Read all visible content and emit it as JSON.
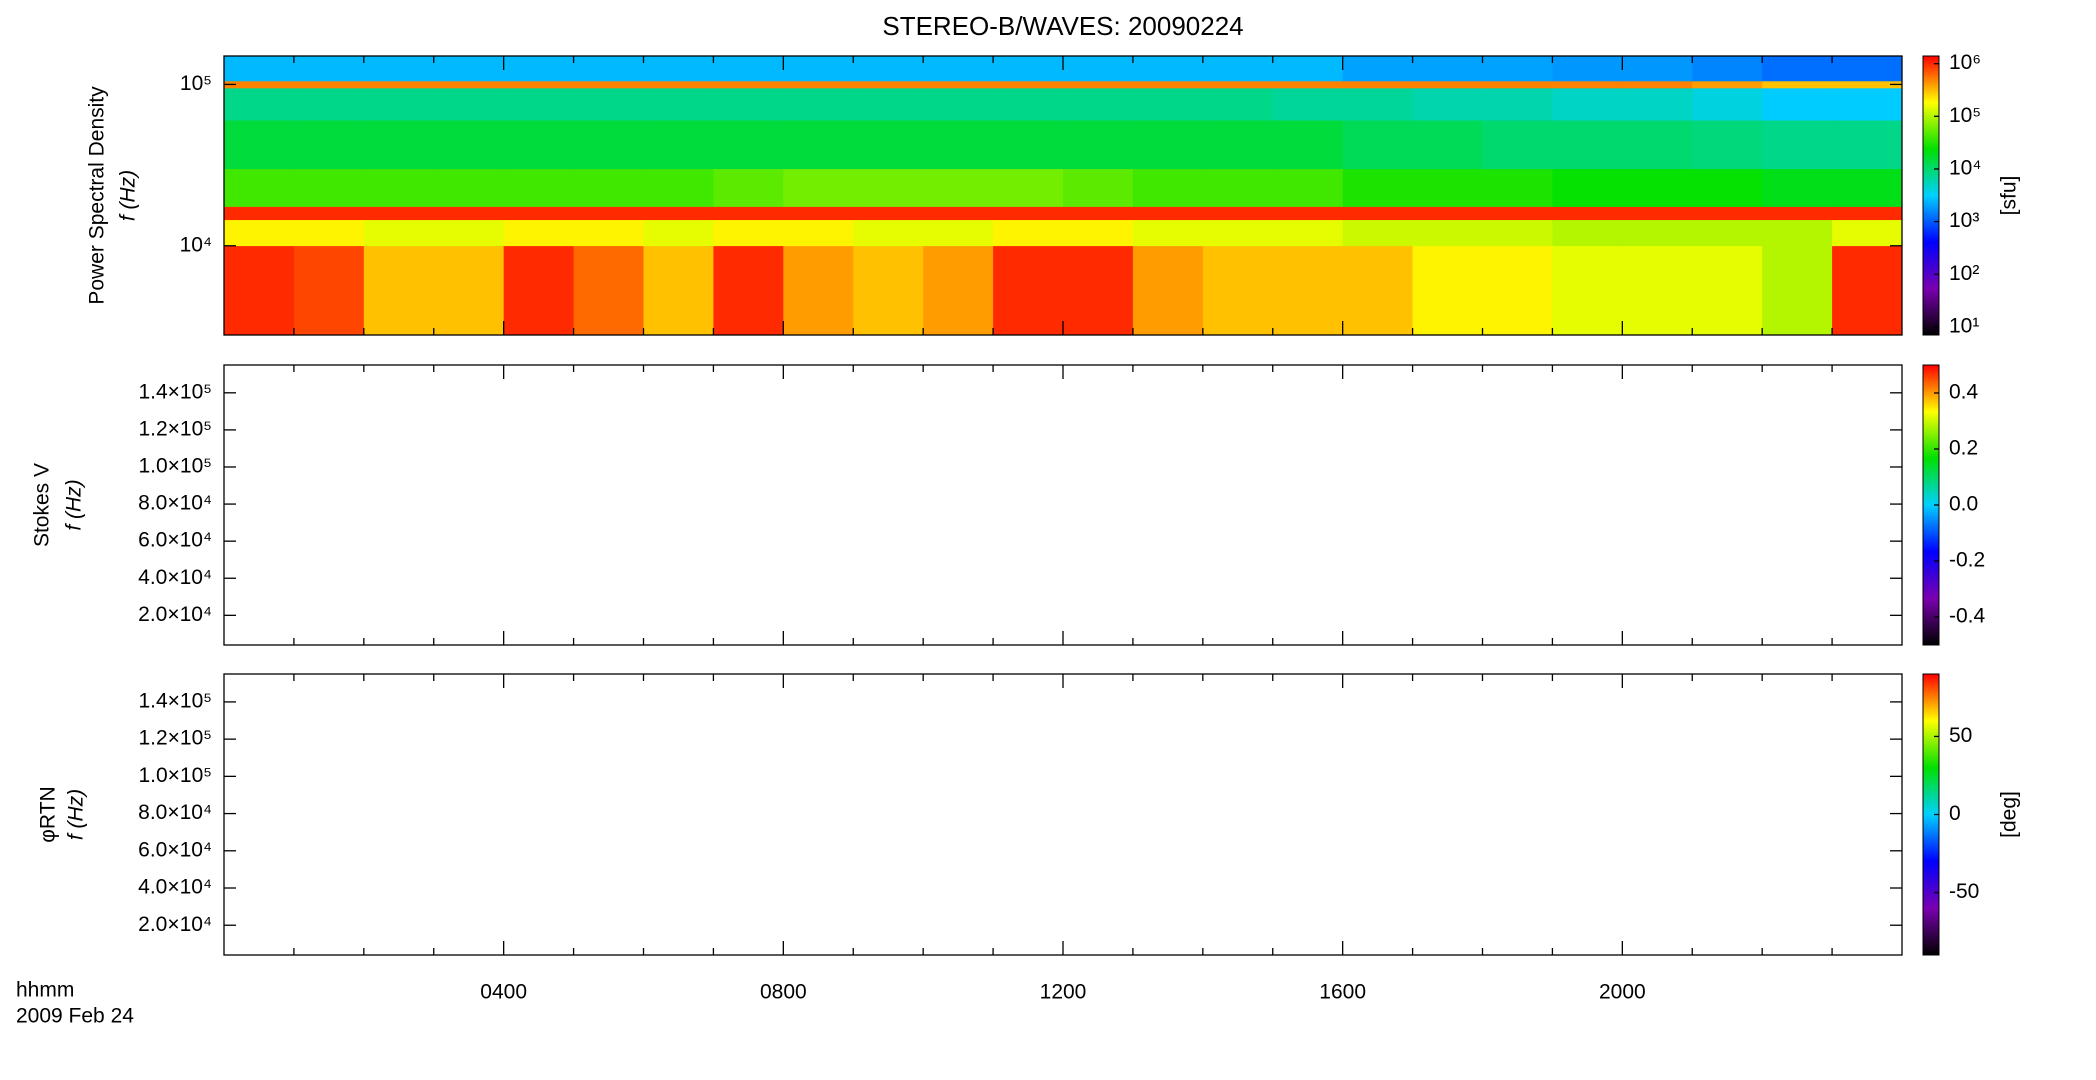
{
  "figure": {
    "title": "STEREO-B/WAVES: 20090224",
    "x_label": "hhmm",
    "date_label": "2009 Feb 24",
    "xlim": [
      0,
      24
    ],
    "xticks": [
      {
        "value": 4,
        "label": "0400"
      },
      {
        "value": 8,
        "label": "0800"
      },
      {
        "value": 12,
        "label": "1200"
      },
      {
        "value": 16,
        "label": "1600"
      },
      {
        "value": 20,
        "label": "2000"
      }
    ],
    "xminorticks": [
      1,
      2,
      3,
      5,
      6,
      7,
      9,
      10,
      11,
      13,
      14,
      15,
      17,
      18,
      19,
      21,
      22,
      23
    ],
    "colorscale": [
      "#000000",
      "#7a00b0",
      "#0000ff",
      "#00d0ff",
      "#00e000",
      "#ffff00",
      "#ff0000"
    ]
  },
  "chart_data": [
    {
      "type": "heatmap",
      "ylabel": [
        "Power Spectral Density",
        "f (Hz)"
      ],
      "yscale": "log",
      "ylim": [
        2800,
        150000
      ],
      "yticks": [
        {
          "value": 10000,
          "label": "10⁴"
        },
        {
          "value": 100000,
          "label": "10⁵"
        }
      ],
      "x": [
        0,
        1,
        2,
        3,
        4,
        5,
        6,
        7,
        8,
        9,
        10,
        11,
        12,
        13,
        14,
        15,
        16,
        17,
        18,
        19,
        20,
        21,
        22,
        23,
        24
      ],
      "y": [
        2800,
        10000,
        14500,
        17500,
        30000,
        60000,
        95000,
        105000,
        150000
      ],
      "z": [
        [
          1000000,
          800000,
          300000,
          300000,
          1000000,
          600000,
          300000,
          1000000,
          400000,
          300000,
          400000,
          1000000,
          1000000,
          400000,
          300000,
          300000,
          300000,
          200000,
          200000,
          150000,
          150000,
          150000,
          100000,
          1000000
        ],
        [
          200000,
          200000,
          150000,
          150000,
          200000,
          200000,
          150000,
          200000,
          200000,
          150000,
          150000,
          200000,
          200000,
          150000,
          150000,
          150000,
          120000,
          120000,
          120000,
          100000,
          100000,
          100000,
          100000,
          150000
        ],
        [
          1000000,
          1000000,
          1000000,
          1000000,
          1000000,
          1000000,
          1000000,
          1000000,
          1000000,
          1000000,
          1000000,
          1000000,
          1000000,
          1000000,
          1000000,
          1000000,
          1000000,
          1000000,
          1000000,
          1000000,
          1000000,
          1000000,
          1000000,
          1000000
        ],
        [
          40000,
          40000,
          40000,
          40000,
          40000,
          40000,
          40000,
          50000,
          60000,
          60000,
          60000,
          60000,
          50000,
          40000,
          40000,
          40000,
          30000,
          30000,
          30000,
          25000,
          25000,
          25000,
          20000,
          20000
        ],
        [
          15000,
          15000,
          15000,
          15000,
          15000,
          15000,
          15000,
          15000,
          15000,
          15000,
          15000,
          15000,
          15000,
          15000,
          15000,
          15000,
          12000,
          12000,
          10000,
          10000,
          10000,
          9000,
          8000,
          8000
        ],
        [
          8000,
          8000,
          8000,
          8000,
          8000,
          8000,
          8000,
          8000,
          8000,
          8000,
          8000,
          8000,
          8000,
          8000,
          8000,
          7000,
          7000,
          6000,
          6000,
          5000,
          5000,
          4000,
          3000,
          3000
        ],
        [
          500000,
          500000,
          500000,
          500000,
          500000,
          500000,
          500000,
          500000,
          500000,
          500000,
          500000,
          500000,
          500000,
          500000,
          500000,
          500000,
          500000,
          500000,
          500000,
          500000,
          500000,
          400000,
          300000,
          300000
        ],
        [
          2500,
          2500,
          2500,
          2500,
          2500,
          2500,
          2500,
          2500,
          2500,
          2500,
          2500,
          2500,
          2500,
          2500,
          2500,
          2500,
          2000,
          2000,
          2000,
          1800,
          1800,
          1500,
          1200,
          1200
        ]
      ],
      "colorbar": {
        "scale": "log",
        "clim": [
          7,
          1400000
        ],
        "label": "[sfu]",
        "ticks": [
          {
            "value": 10,
            "label": "10¹"
          },
          {
            "value": 100,
            "label": "10²"
          },
          {
            "value": 1000,
            "label": "10³"
          },
          {
            "value": 10000,
            "label": "10⁴"
          },
          {
            "value": 100000,
            "label": "10⁵"
          },
          {
            "value": 1000000,
            "label": "10⁶"
          }
        ]
      }
    },
    {
      "type": "heatmap",
      "ylabel": [
        "Stokes V",
        "f (Hz)"
      ],
      "yscale": "linear",
      "ylim": [
        4000,
        155000
      ],
      "yticks": [
        {
          "value": 20000,
          "label": "2.0×10⁴"
        },
        {
          "value": 40000,
          "label": "4.0×10⁴"
        },
        {
          "value": 60000,
          "label": "6.0×10⁴"
        },
        {
          "value": 80000,
          "label": "8.0×10⁴"
        },
        {
          "value": 100000,
          "label": "1.0×10⁵"
        },
        {
          "value": 120000,
          "label": "1.2×10⁵"
        },
        {
          "value": 140000,
          "label": "1.4×10⁵"
        }
      ],
      "colorbar": {
        "scale": "linear",
        "clim": [
          -0.5,
          0.5
        ],
        "ticks": [
          -0.4,
          -0.2,
          {
            "value": 0,
            "label": "0.0"
          },
          0.2,
          0.4
        ]
      }
    },
    {
      "type": "heatmap",
      "ylabel": [
        "φRTN",
        "f (Hz)"
      ],
      "yscale": "linear",
      "ylim": [
        4000,
        155000
      ],
      "yticks": [
        {
          "value": 20000,
          "label": "2.0×10⁴"
        },
        {
          "value": 40000,
          "label": "4.0×10⁴"
        },
        {
          "value": 60000,
          "label": "6.0×10⁴"
        },
        {
          "value": 80000,
          "label": "8.0×10⁴"
        },
        {
          "value": 100000,
          "label": "1.0×10⁵"
        },
        {
          "value": 120000,
          "label": "1.2×10⁵"
        },
        {
          "value": 140000,
          "label": "1.4×10⁵"
        }
      ],
      "colorbar": {
        "scale": "linear",
        "clim": [
          -90,
          90
        ],
        "label": "[deg]",
        "ticks": [
          -50,
          0,
          50
        ]
      }
    }
  ]
}
